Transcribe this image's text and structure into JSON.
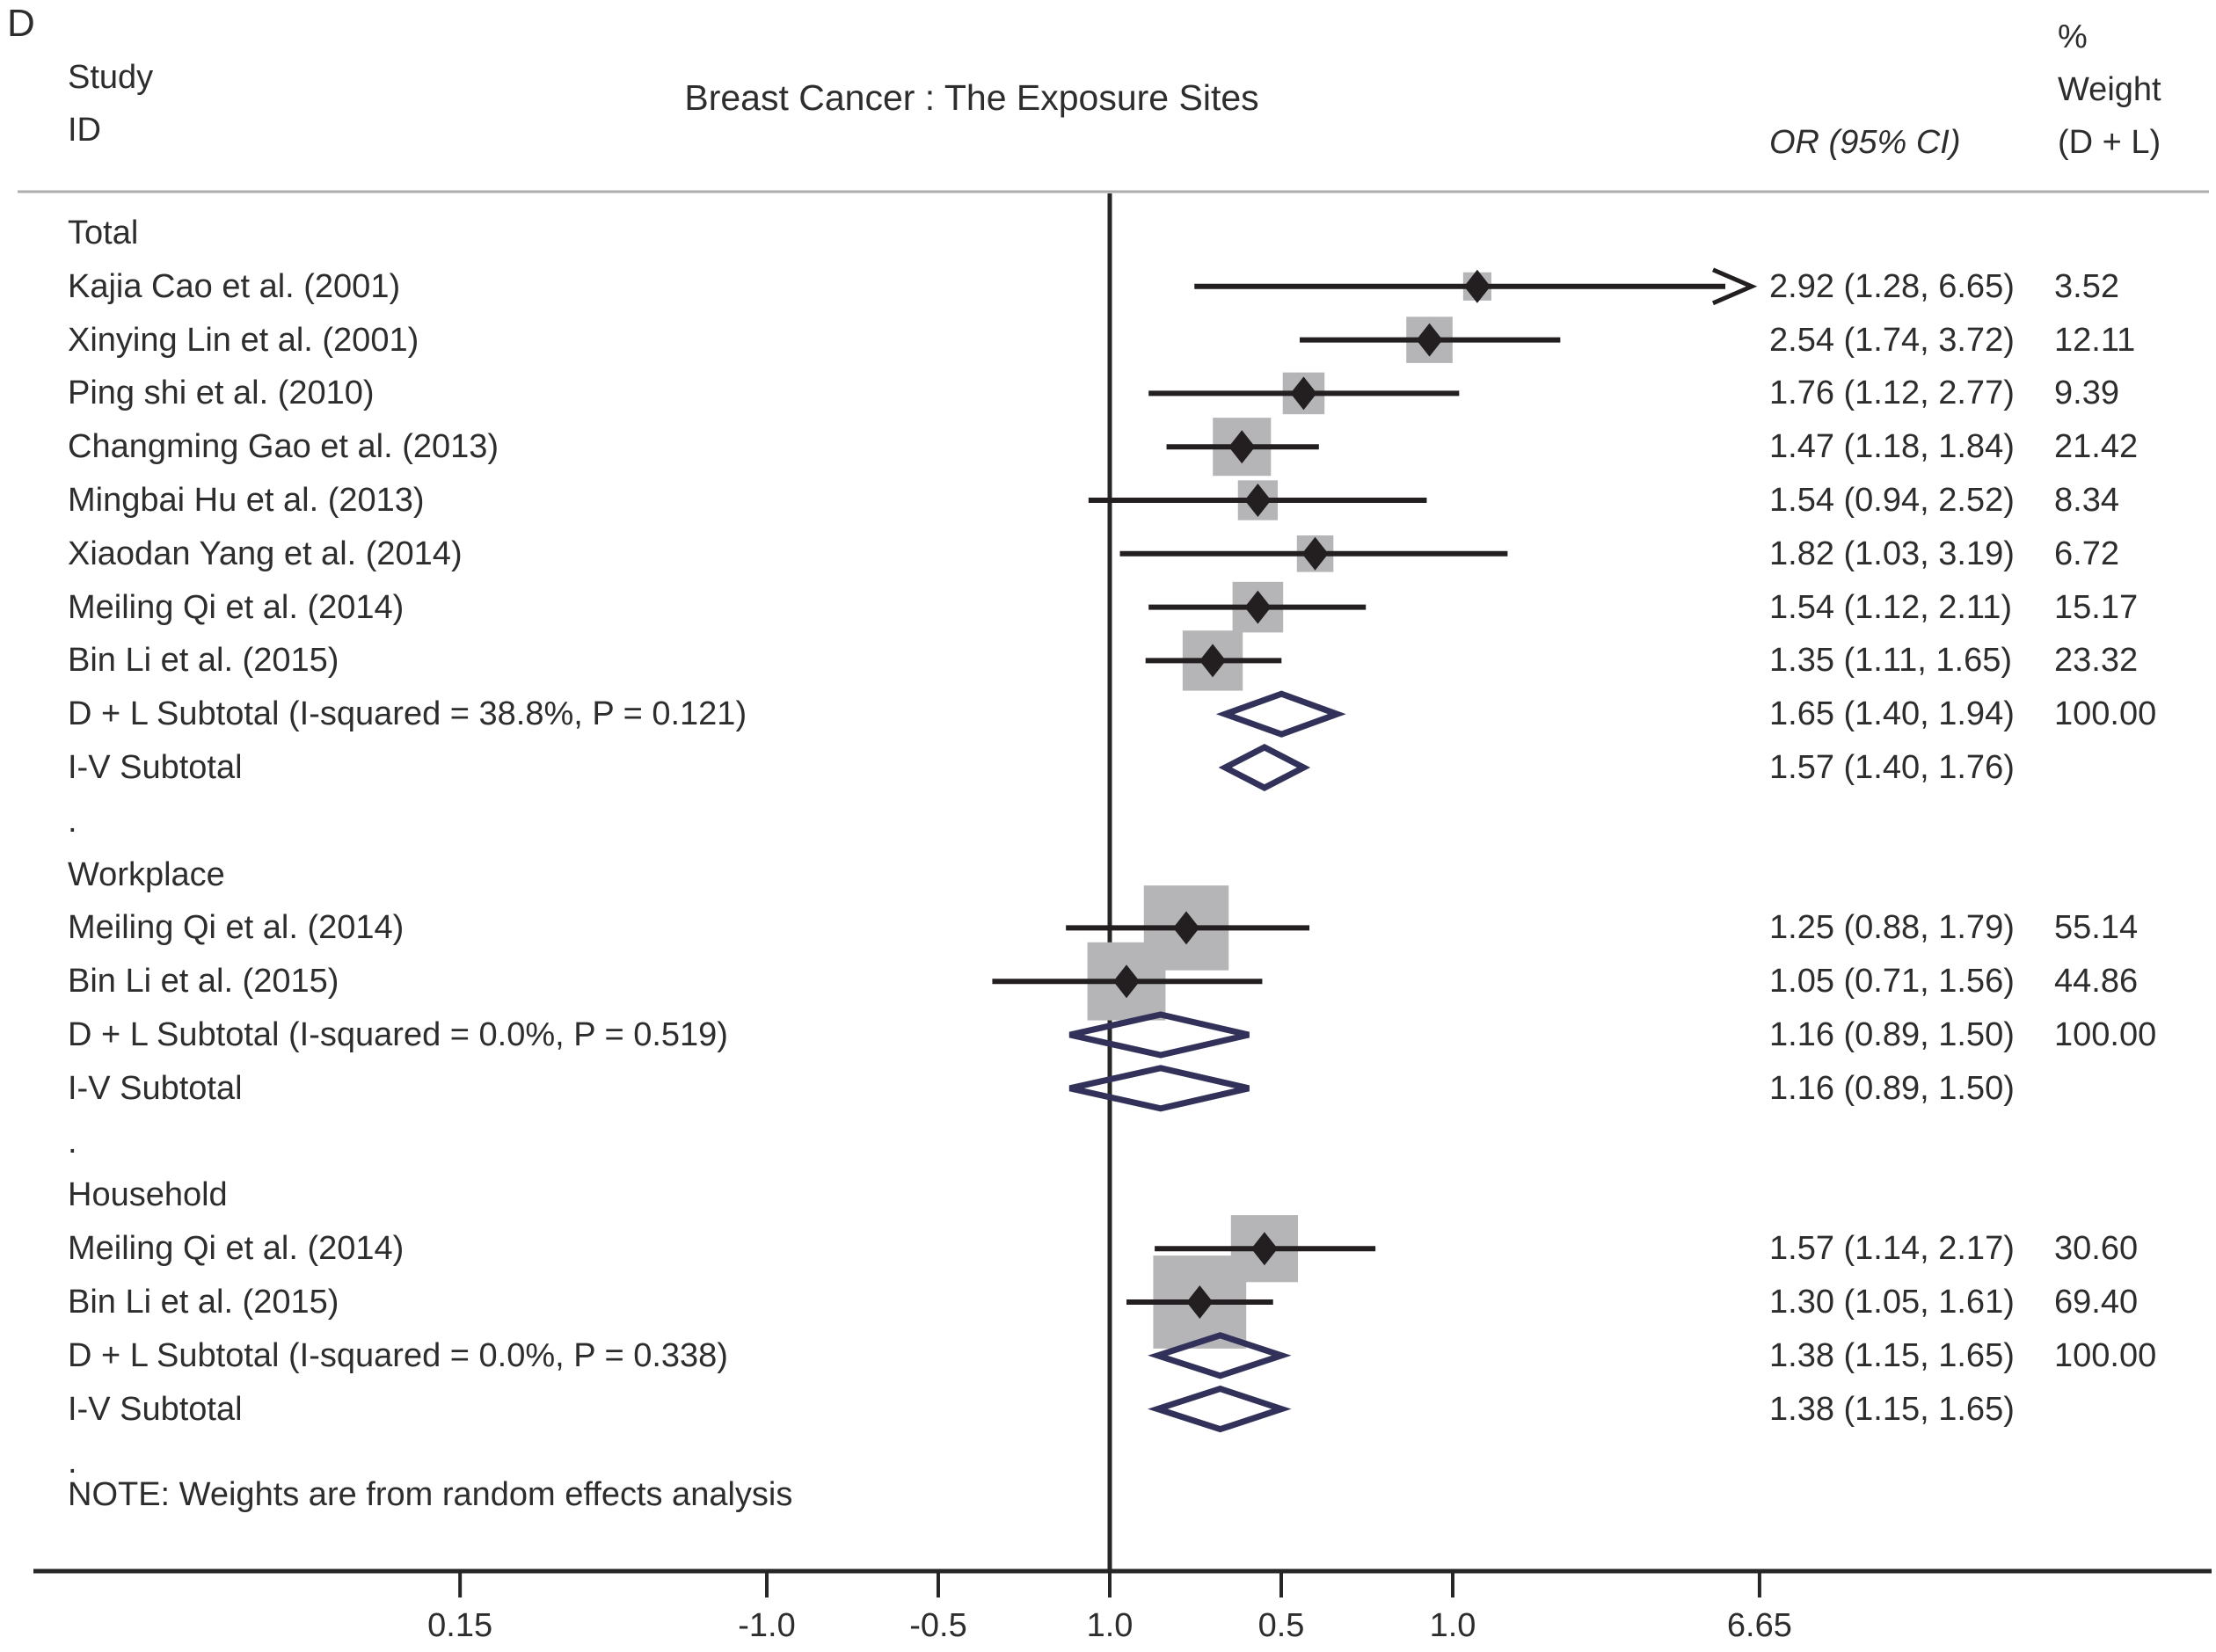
{
  "figure": {
    "panel_label": "D",
    "title": "Breast Cancer : The Exposure Sites",
    "col_study_line1": "Study",
    "col_study_line2": "ID",
    "col_or_header": "OR (95% CI)",
    "col_weight_pct": "%",
    "col_weight_line1": "Weight",
    "col_weight_line2": "(D + L)",
    "note": "NOTE: Weights are from random effects analysis"
  },
  "chart_data": {
    "type": "forest",
    "title": "Breast Cancer : The Exposure Sites",
    "effect_measure": "OR",
    "reference_line_or": 1.0,
    "axis": {
      "scale": "log",
      "range_or": [
        0.15,
        6.65
      ],
      "ticks": [
        {
          "label": "0.15",
          "or": 0.1504
        },
        {
          "label": "-1.0",
          "or": 0.3679
        },
        {
          "label": "-0.5",
          "or": 0.6065
        },
        {
          "label": "1.0",
          "or": 1.0
        },
        {
          "label": "0.5",
          "or": 1.6487
        },
        {
          "label": "1.0",
          "or": 2.7183
        },
        {
          "label": "6.65",
          "or": 6.65
        }
      ]
    },
    "colors": {
      "box_fill": "#b5b5b7",
      "line": "#262626",
      "point": "#231f20",
      "diamond_stroke": "#32315a",
      "header_rule": "#adadad"
    },
    "rows": [
      {
        "type": "section",
        "label": "Total"
      },
      {
        "type": "study",
        "label": "Kajia Cao et al. (2001)",
        "or": 2.92,
        "lo": 1.28,
        "hi": 6.65,
        "or_text": "2.92 (1.28, 6.65)",
        "weight": "3.52",
        "clip_hi": true
      },
      {
        "type": "study",
        "label": "Xinying Lin et al. (2001)",
        "or": 2.54,
        "lo": 1.74,
        "hi": 3.72,
        "or_text": "2.54 (1.74, 3.72)",
        "weight": "12.11"
      },
      {
        "type": "study",
        "label": "Ping shi et al. (2010)",
        "or": 1.76,
        "lo": 1.12,
        "hi": 2.77,
        "or_text": "1.76 (1.12, 2.77)",
        "weight": "9.39"
      },
      {
        "type": "study",
        "label": "Changming Gao et al. (2013)",
        "or": 1.47,
        "lo": 1.18,
        "hi": 1.84,
        "or_text": "1.47 (1.18, 1.84)",
        "weight": "21.42"
      },
      {
        "type": "study",
        "label": "Mingbai Hu et al. (2013)",
        "or": 1.54,
        "lo": 0.94,
        "hi": 2.52,
        "or_text": "1.54 (0.94, 2.52)",
        "weight": "8.34"
      },
      {
        "type": "study",
        "label": "Xiaodan Yang et al. (2014)",
        "or": 1.82,
        "lo": 1.03,
        "hi": 3.19,
        "or_text": "1.82 (1.03, 3.19)",
        "weight": "6.72"
      },
      {
        "type": "study",
        "label": "Meiling Qi et al. (2014)",
        "or": 1.54,
        "lo": 1.12,
        "hi": 2.11,
        "or_text": "1.54 (1.12, 2.11)",
        "weight": "15.17"
      },
      {
        "type": "study",
        "label": "Bin Li et al. (2015)",
        "or": 1.35,
        "lo": 1.11,
        "hi": 1.65,
        "or_text": "1.35 (1.11, 1.65)",
        "weight": "23.32"
      },
      {
        "type": "summary",
        "label": "D + L Subtotal  (I-squared = 38.8%, P = 0.121)",
        "or": 1.65,
        "lo": 1.4,
        "hi": 1.94,
        "or_text": "1.65 (1.40, 1.94)",
        "weight": "100.00"
      },
      {
        "type": "summary",
        "label": "I-V Subtotal",
        "or": 1.57,
        "lo": 1.4,
        "hi": 1.76,
        "or_text": "1.57 (1.40, 1.76)",
        "weight": ""
      },
      {
        "type": "sep",
        "label": "."
      },
      {
        "type": "section",
        "label": "Workplace"
      },
      {
        "type": "study",
        "label": "Meiling Qi et al. (2014)",
        "or": 1.25,
        "lo": 0.88,
        "hi": 1.79,
        "or_text": "1.25 (0.88, 1.79)",
        "weight": "55.14"
      },
      {
        "type": "study",
        "label": "Bin Li et al. (2015)",
        "or": 1.05,
        "lo": 0.71,
        "hi": 1.56,
        "or_text": "1.05 (0.71, 1.56)",
        "weight": "44.86"
      },
      {
        "type": "summary",
        "label": "D + L Subtotal  (I-squared = 0.0%, P = 0.519)",
        "or": 1.16,
        "lo": 0.89,
        "hi": 1.5,
        "or_text": "1.16 (0.89, 1.50)",
        "weight": "100.00"
      },
      {
        "type": "summary",
        "label": "I-V Subtotal",
        "or": 1.16,
        "lo": 0.89,
        "hi": 1.5,
        "or_text": "1.16 (0.89, 1.50)",
        "weight": ""
      },
      {
        "type": "sep",
        "label": "."
      },
      {
        "type": "section",
        "label": "Household"
      },
      {
        "type": "study",
        "label": "Meiling Qi et al. (2014)",
        "or": 1.57,
        "lo": 1.14,
        "hi": 2.17,
        "or_text": "1.57 (1.14, 2.17)",
        "weight": "30.60"
      },
      {
        "type": "study",
        "label": "Bin Li et al. (2015)",
        "or": 1.3,
        "lo": 1.05,
        "hi": 1.61,
        "or_text": "1.30 (1.05, 1.61)",
        "weight": "69.40"
      },
      {
        "type": "summary",
        "label": "D + L Subtotal  (I-squared = 0.0%, P = 0.338)",
        "or": 1.38,
        "lo": 1.15,
        "hi": 1.65,
        "or_text": "1.38 (1.15, 1.65)",
        "weight": "100.00"
      },
      {
        "type": "summary",
        "label": "I-V Subtotal",
        "or": 1.38,
        "lo": 1.15,
        "hi": 1.65,
        "or_text": "1.38 (1.15, 1.65)",
        "weight": ""
      },
      {
        "type": "sep",
        "label": "."
      }
    ]
  }
}
